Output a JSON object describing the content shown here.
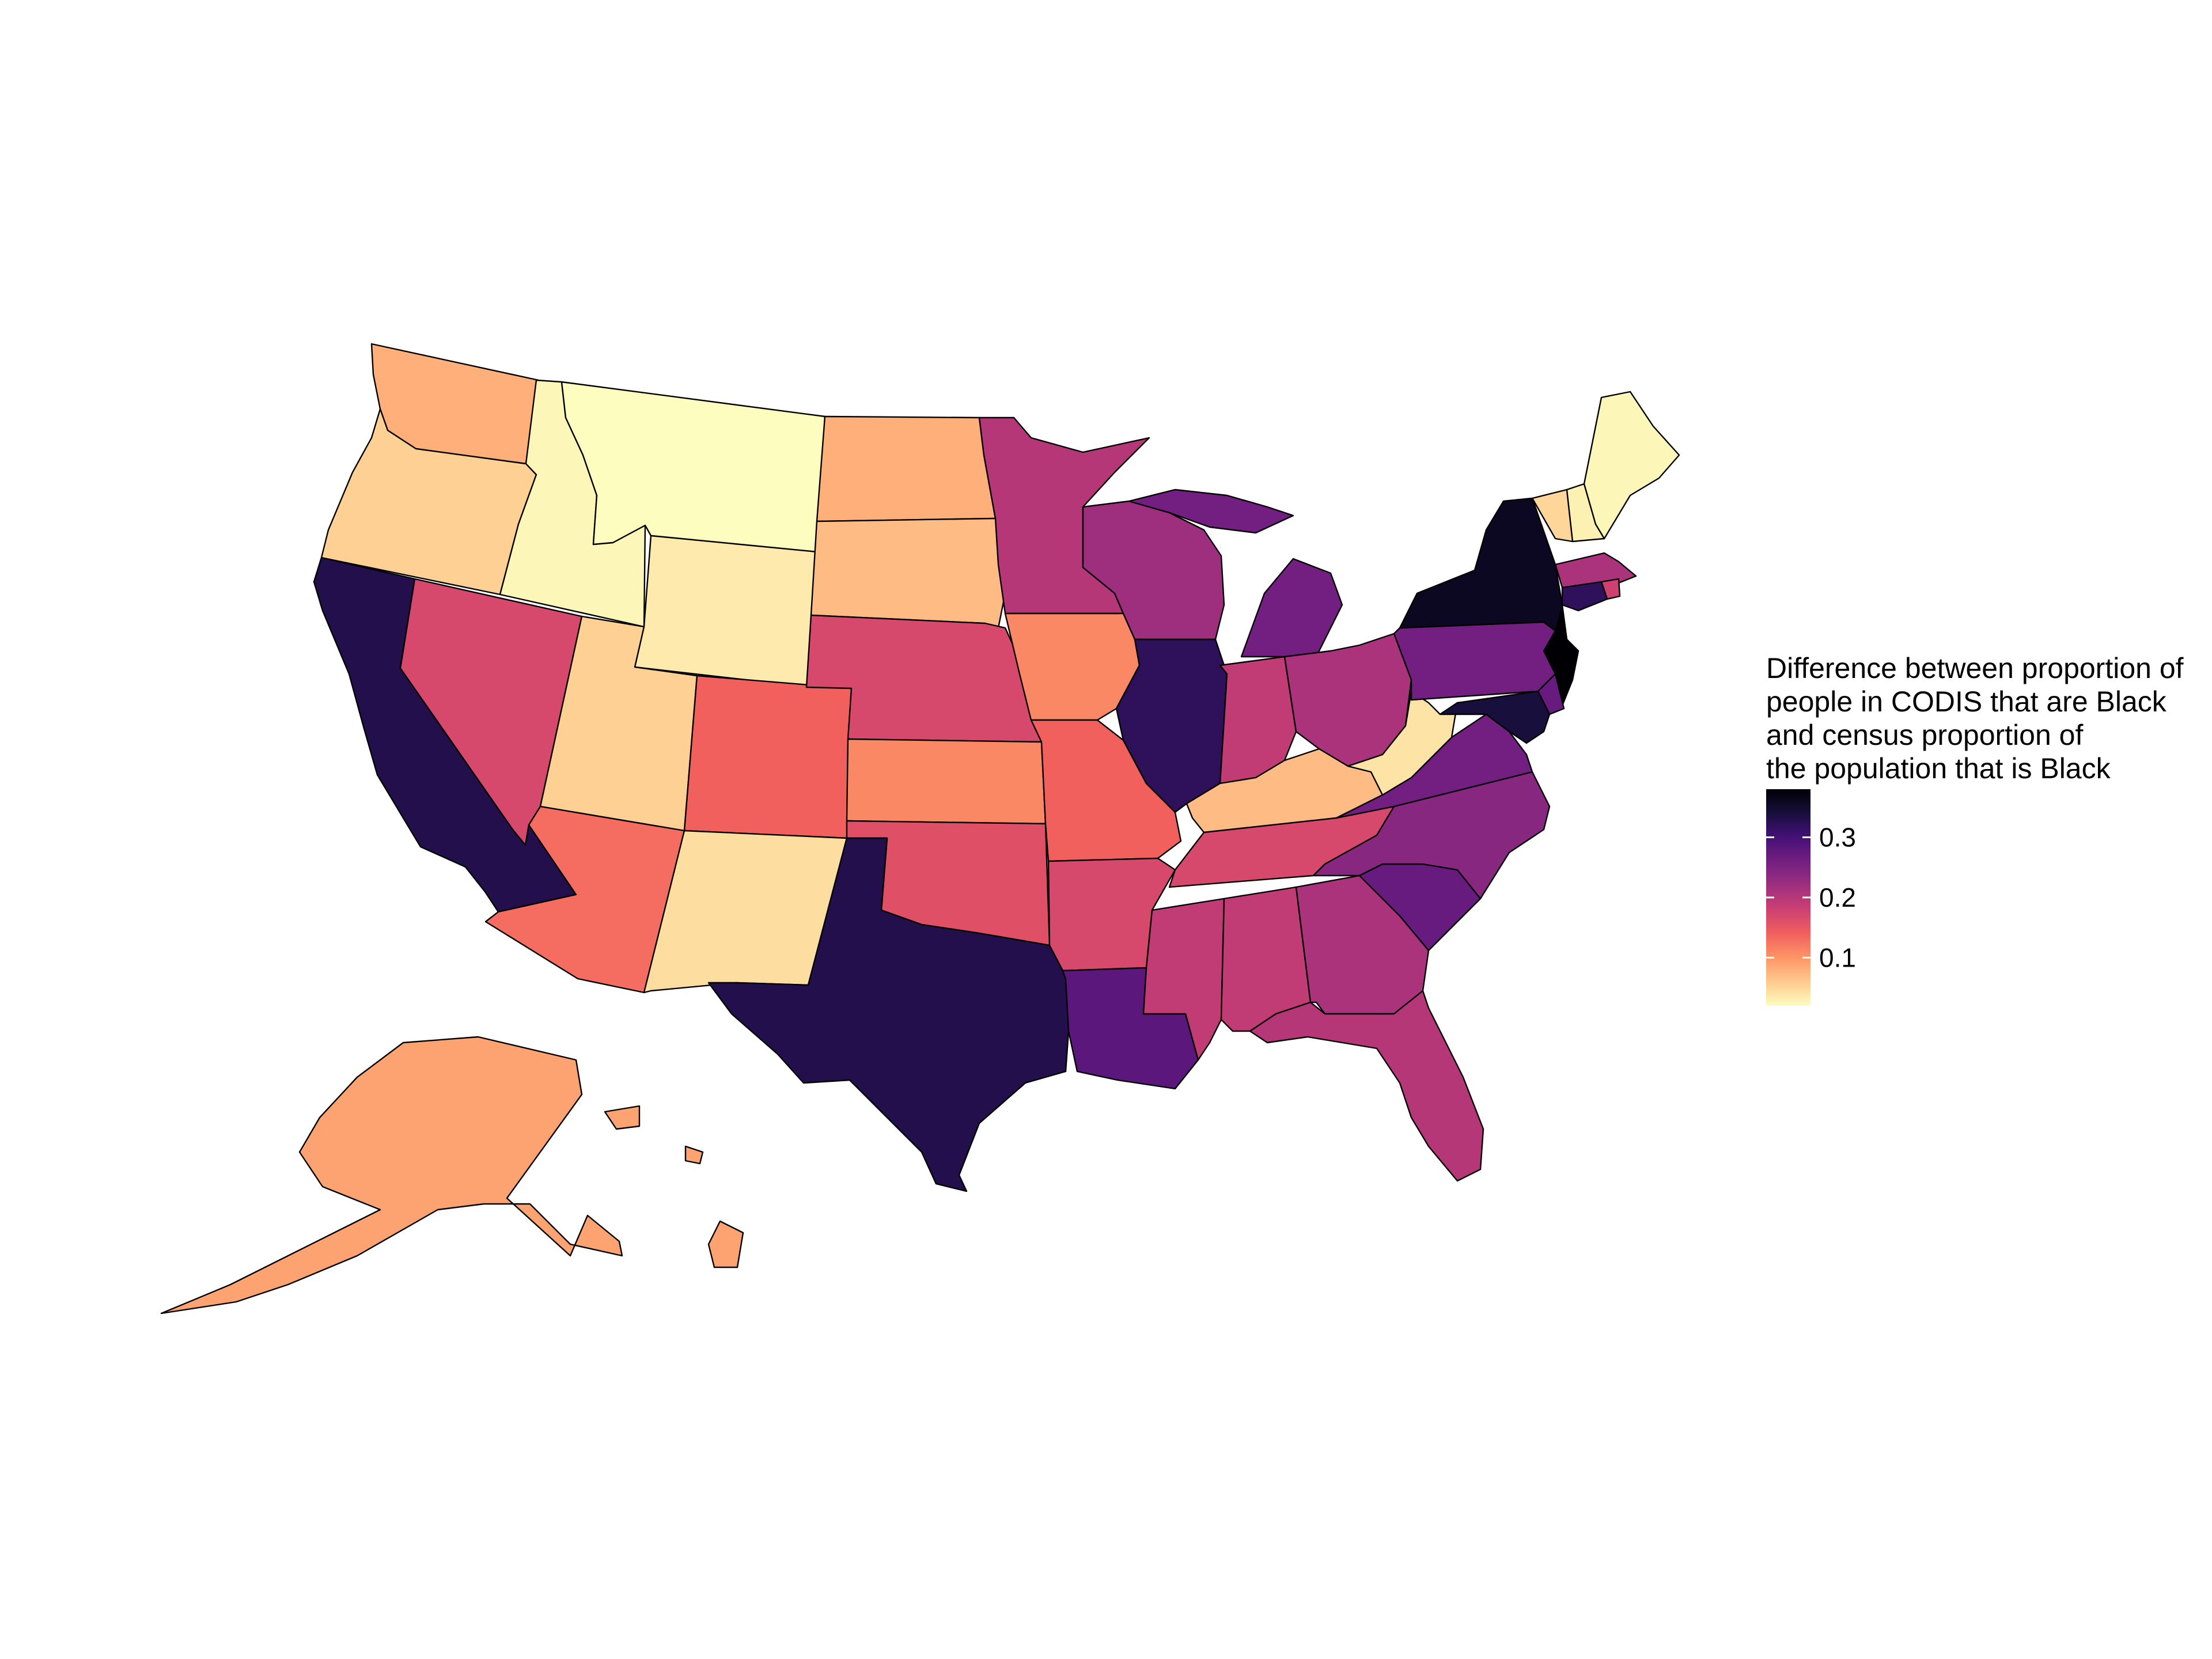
{
  "legend": {
    "title_lines": [
      "Difference between proportion of",
      "people in CODIS that are Black",
      "and census proportion of",
      "the population that is Black"
    ],
    "ticks": [
      {
        "label": "0.3",
        "value": 0.3
      },
      {
        "label": "0.2",
        "value": 0.2
      },
      {
        "label": "0.1",
        "value": 0.1
      }
    ],
    "domain": [
      0.02,
      0.38
    ],
    "palette": "magma (reversed)",
    "stops": [
      "#fcfdbf",
      "#fec98d",
      "#fd9567",
      "#f1605d",
      "#cd4071",
      "#9e2f7f",
      "#721f81",
      "#451077",
      "#180f3d",
      "#000004"
    ]
  },
  "chart_data": {
    "type": "choropleth",
    "title": "",
    "region_unit": "US state",
    "legend_placement": "right",
    "grid": false,
    "states": [
      {
        "state": "WA",
        "value": 0.08
      },
      {
        "state": "OR",
        "value": 0.055
      },
      {
        "state": "CA",
        "value": 0.33
      },
      {
        "state": "ID",
        "value": 0.025
      },
      {
        "state": "NV",
        "value": 0.17
      },
      {
        "state": "MT",
        "value": 0.02
      },
      {
        "state": "WY",
        "value": 0.035
      },
      {
        "state": "UT",
        "value": 0.055
      },
      {
        "state": "AZ",
        "value": 0.13
      },
      {
        "state": "CO",
        "value": 0.14
      },
      {
        "state": "NM",
        "value": 0.045
      },
      {
        "state": "ND",
        "value": 0.08
      },
      {
        "state": "SD",
        "value": 0.07
      },
      {
        "state": "NE",
        "value": 0.17
      },
      {
        "state": "KS",
        "value": 0.11
      },
      {
        "state": "OK",
        "value": 0.16
      },
      {
        "state": "TX",
        "value": 0.33
      },
      {
        "state": "MN",
        "value": 0.2
      },
      {
        "state": "IA",
        "value": 0.11
      },
      {
        "state": "MO",
        "value": 0.14
      },
      {
        "state": "AR",
        "value": 0.17
      },
      {
        "state": "LA",
        "value": 0.28
      },
      {
        "state": "WI",
        "value": 0.22
      },
      {
        "state": "IL",
        "value": 0.32
      },
      {
        "state": "MI",
        "value": 0.26
      },
      {
        "state": "IN",
        "value": 0.19
      },
      {
        "state": "OH",
        "value": 0.21
      },
      {
        "state": "KY",
        "value": 0.07
      },
      {
        "state": "TN",
        "value": 0.17
      },
      {
        "state": "MS",
        "value": 0.19
      },
      {
        "state": "AL",
        "value": 0.19
      },
      {
        "state": "GA",
        "value": 0.21
      },
      {
        "state": "FL",
        "value": 0.2
      },
      {
        "state": "SC",
        "value": 0.27
      },
      {
        "state": "NC",
        "value": 0.24
      },
      {
        "state": "VA",
        "value": 0.26
      },
      {
        "state": "WV",
        "value": 0.04
      },
      {
        "state": "PA",
        "value": 0.26
      },
      {
        "state": "NY",
        "value": 0.36
      },
      {
        "state": "VT",
        "value": 0.05
      },
      {
        "state": "NH",
        "value": 0.03
      },
      {
        "state": "ME",
        "value": 0.025
      },
      {
        "state": "MA",
        "value": 0.21
      },
      {
        "state": "RI",
        "value": 0.18
      },
      {
        "state": "CT",
        "value": 0.32
      },
      {
        "state": "NJ",
        "value": 0.38
      },
      {
        "state": "DE",
        "value": 0.27
      },
      {
        "state": "MD",
        "value": 0.34
      },
      {
        "state": "AK",
        "value": 0.09
      },
      {
        "state": "HI",
        "value": 0.09
      }
    ]
  }
}
